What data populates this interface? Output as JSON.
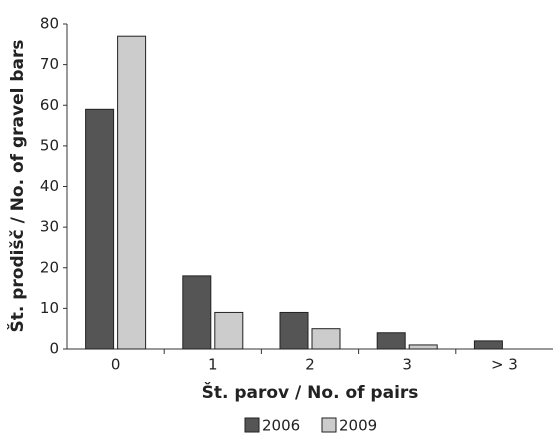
{
  "chart_data": {
    "type": "bar",
    "categories": [
      "0",
      "1",
      "2",
      "3",
      "> 3"
    ],
    "series": [
      {
        "name": "2006",
        "color": "#555555",
        "values": [
          59,
          18,
          9,
          4,
          2
        ]
      },
      {
        "name": "2009",
        "color": "#cccccc",
        "values": [
          77,
          9,
          5,
          1,
          0
        ]
      }
    ],
    "x_label": "Št. parov / No. of pairs",
    "y_label": "Št. prodišč / No. of gravel bars",
    "ylim": [
      0,
      80
    ],
    "yticks": [
      0,
      10,
      20,
      30,
      40,
      50,
      60,
      70,
      80
    ],
    "grid": false,
    "legend": "bottom"
  }
}
